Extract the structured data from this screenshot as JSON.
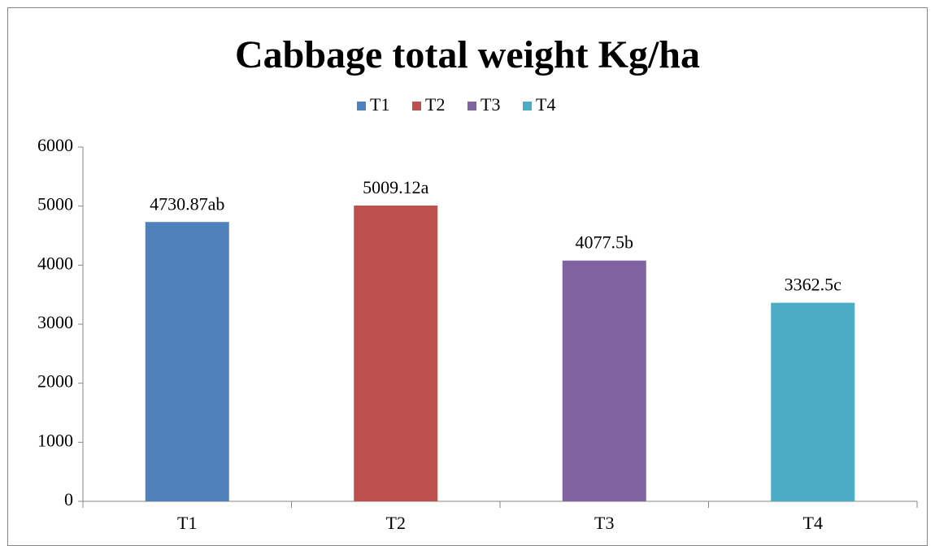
{
  "chart_data": {
    "type": "bar",
    "title": "Cabbage total weight Kg/ha",
    "categories": [
      "T1",
      "T2",
      "T3",
      "T4"
    ],
    "values": [
      4730.87,
      5009.12,
      4077.5,
      3362.5
    ],
    "value_labels": [
      "4730.87ab",
      "5009.12a",
      "4077.5b",
      "3362.5c"
    ],
    "colors": [
      "#4f81bd",
      "#c0504d",
      "#8064a2",
      "#4bacc6"
    ],
    "ylim": [
      0,
      6000
    ],
    "yticks": [
      0,
      1000,
      2000,
      3000,
      4000,
      5000,
      6000
    ],
    "grid": false,
    "legend": "top"
  }
}
